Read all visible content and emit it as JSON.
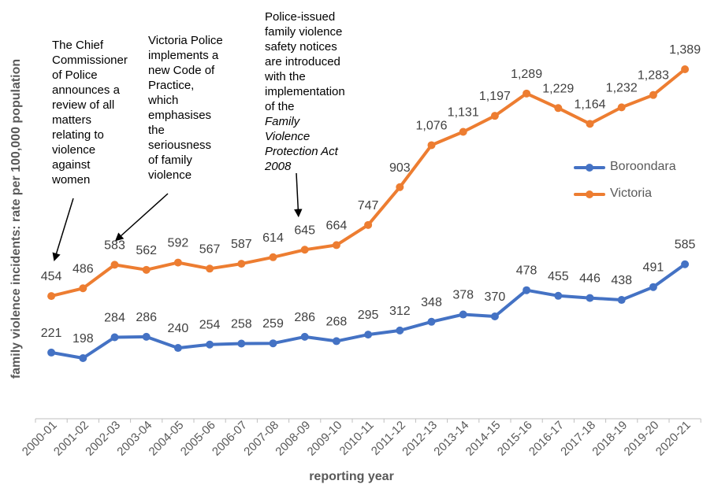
{
  "chart_data": {
    "type": "line",
    "title": "",
    "xlabel": "reporting year",
    "ylabel": "family violence incidents: rate per 100,000 population",
    "ylim": [
      0,
      1500
    ],
    "grid": false,
    "legend": "right",
    "categories": [
      "2000-01",
      "2001-02",
      "2002-03",
      "2003-04",
      "2004-05",
      "2005-06",
      "2006-07",
      "2007-08",
      "2008-09",
      "2009-10",
      "2010-11",
      "2011-12",
      "2012-13",
      "2013-14",
      "2014-15",
      "2015-16",
      "2016-17",
      "2017-18",
      "2018-19",
      "2019-20",
      "2020-21"
    ],
    "series": [
      {
        "name": "Boroondara",
        "color": "#4472C4",
        "values": [
          221,
          198,
          284,
          286,
          240,
          254,
          258,
          259,
          286,
          268,
          295,
          312,
          348,
          378,
          370,
          478,
          455,
          446,
          438,
          491,
          585
        ],
        "labels": [
          "221",
          "198",
          "284",
          "286",
          "240",
          "254",
          "258",
          "259",
          "286",
          "268",
          "295",
          "312",
          "348",
          "378",
          "370",
          "478",
          "455",
          "446",
          "438",
          "491",
          "585"
        ]
      },
      {
        "name": "Victoria",
        "color": "#ED7D31",
        "values": [
          454,
          486,
          583,
          562,
          592,
          567,
          587,
          614,
          645,
          664,
          747,
          903,
          1076,
          1131,
          1197,
          1289,
          1229,
          1164,
          1232,
          1283,
          1389
        ],
        "labels": [
          "454",
          "486",
          "583",
          "562",
          "592",
          "567",
          "587",
          "614",
          "645",
          "664",
          "747",
          "903",
          "1,076",
          "1,131",
          "1,197",
          "1,289",
          "1,229",
          "1,164",
          "1,232",
          "1,283",
          "1,389"
        ]
      }
    ],
    "annotations": [
      {
        "id": "chief-commissioner",
        "lines": [
          "The Chief",
          "Commissioner",
          "of Police",
          "announces a",
          "review of all",
          "matters",
          "relating to",
          "violence",
          "against",
          "women"
        ],
        "points_to": "2000-01"
      },
      {
        "id": "code-of-practice",
        "lines": [
          "Victoria Police",
          "implements a",
          "new Code of",
          "Practice,",
          "which",
          "emphasises",
          "the",
          "seriousness",
          "of family",
          "violence"
        ],
        "points_to": "2002-03"
      },
      {
        "id": "safety-notices",
        "lines": [
          "Police-issued",
          "family violence",
          "safety notices",
          "are introduced",
          "with the",
          "implementation",
          "of the"
        ],
        "italic": "Family Violence Protection Act 2008",
        "italic_lines": [
          "Family",
          "Violence",
          "Protection Act",
          "2008"
        ],
        "points_to": "2008-09"
      }
    ]
  }
}
